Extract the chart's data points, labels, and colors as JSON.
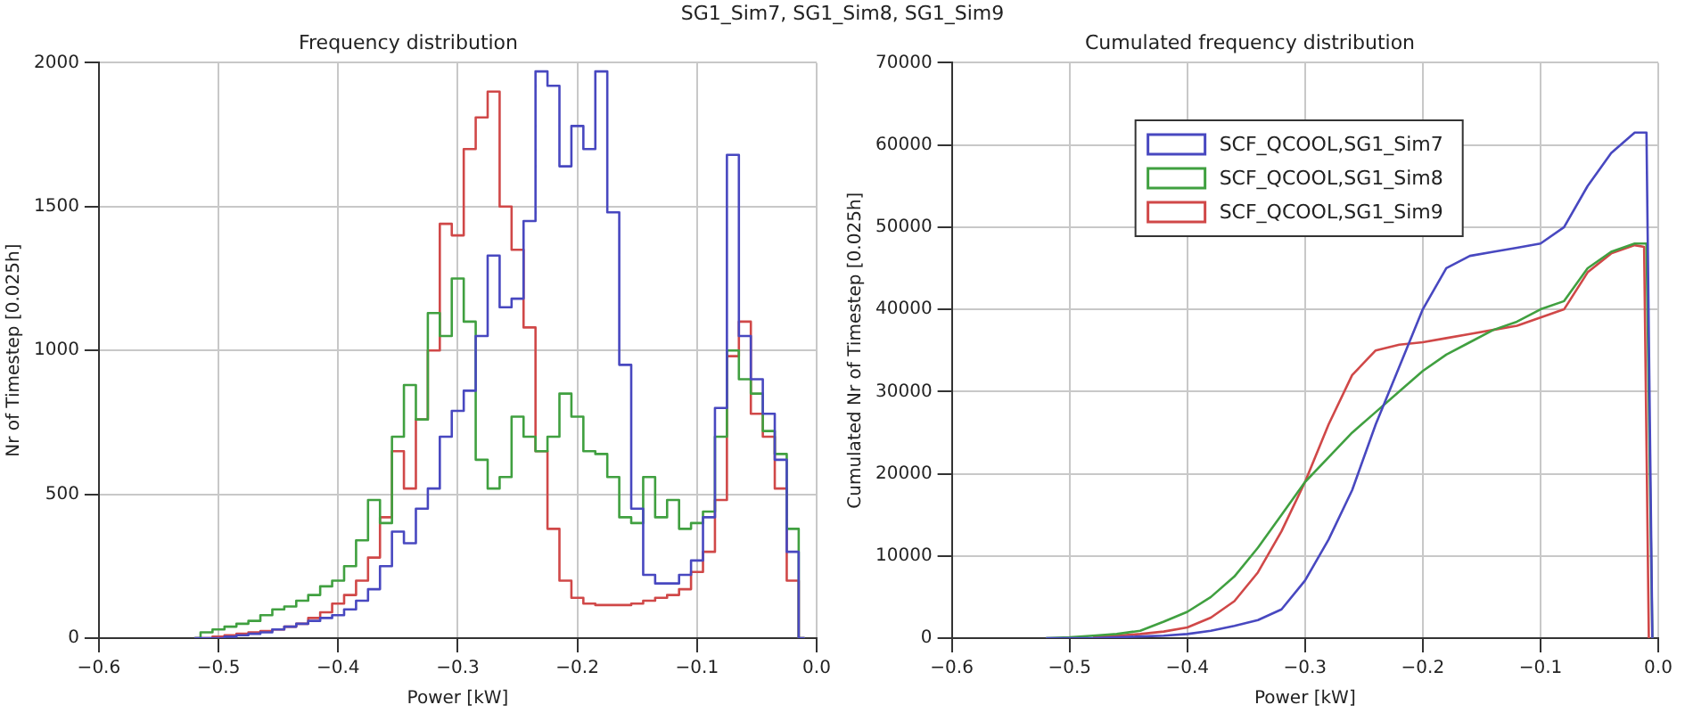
{
  "chart_data": [
    {
      "type": "step",
      "title": "Frequency distribution",
      "xlabel": "Power [kW]",
      "ylabel": "Nr of Timestep [0.025h]",
      "annotations": [
        "SG1_Sim7, SG1_Sim8, SG1_Sim9"
      ],
      "x": [
        -0.52,
        -0.51,
        -0.5,
        -0.49,
        -0.48,
        -0.47,
        -0.46,
        -0.45,
        -0.44,
        -0.43,
        -0.42,
        -0.41,
        -0.4,
        -0.39,
        -0.38,
        -0.37,
        -0.36,
        -0.35,
        -0.34,
        -0.33,
        -0.32,
        -0.31,
        -0.3,
        -0.29,
        -0.28,
        -0.27,
        -0.26,
        -0.25,
        -0.24,
        -0.23,
        -0.22,
        -0.21,
        -0.2,
        -0.19,
        -0.18,
        -0.17,
        -0.16,
        -0.15,
        -0.14,
        -0.13,
        -0.12,
        -0.11,
        -0.1,
        -0.09,
        -0.08,
        -0.07,
        -0.06,
        -0.05,
        -0.04,
        -0.03,
        -0.02,
        -0.01
      ],
      "series": [
        {
          "color": "#4848c0",
          "values": [
            0,
            0,
            0,
            5,
            10,
            15,
            20,
            30,
            40,
            50,
            60,
            70,
            80,
            100,
            130,
            170,
            250,
            370,
            330,
            450,
            520,
            700,
            790,
            860,
            1050,
            1330,
            1150,
            1180,
            1450,
            1970,
            1920,
            1640,
            1780,
            1700,
            1970,
            1480,
            950,
            450,
            220,
            190,
            190,
            220,
            270,
            420,
            800,
            1680,
            1050,
            900,
            780,
            620,
            300,
            0
          ]
        },
        {
          "color": "#40a040",
          "values": [
            0,
            20,
            30,
            40,
            50,
            60,
            80,
            100,
            110,
            130,
            150,
            180,
            200,
            250,
            340,
            480,
            400,
            700,
            880,
            760,
            1130,
            1050,
            1250,
            1100,
            620,
            520,
            560,
            770,
            700,
            650,
            700,
            850,
            770,
            650,
            640,
            560,
            420,
            400,
            560,
            420,
            480,
            380,
            400,
            440,
            700,
            1000,
            900,
            850,
            720,
            640,
            380,
            0
          ]
        },
        {
          "color": "#d04848",
          "values": [
            0,
            0,
            5,
            10,
            15,
            20,
            25,
            30,
            40,
            50,
            70,
            90,
            120,
            150,
            200,
            280,
            420,
            650,
            520,
            760,
            1000,
            1440,
            1400,
            1700,
            1810,
            1900,
            1500,
            1350,
            1080,
            650,
            380,
            200,
            140,
            120,
            115,
            115,
            115,
            120,
            130,
            140,
            150,
            170,
            230,
            300,
            480,
            980,
            1100,
            780,
            700,
            520,
            200,
            0
          ]
        }
      ],
      "xlim": [
        -0.6,
        0.0
      ],
      "xticks": [
        {
          "value": -0.6,
          "label": "−0.6"
        },
        {
          "value": -0.5,
          "label": "−0.5"
        },
        {
          "value": -0.4,
          "label": "−0.4"
        },
        {
          "value": -0.3,
          "label": "−0.3"
        },
        {
          "value": -0.2,
          "label": "−0.2"
        },
        {
          "value": -0.1,
          "label": "−0.1"
        },
        {
          "value": 0.0,
          "label": "0.0"
        }
      ],
      "ylim": [
        0,
        2000
      ],
      "yticks": [
        0,
        500,
        1000,
        1500,
        2000
      ],
      "grid": true,
      "marker": "none"
    },
    {
      "type": "line",
      "title": "Cumulated frequency distribution",
      "xlabel": "Power [kW]",
      "ylabel": "Cumulated Nr of Timestep [0.025h]",
      "x": [
        -0.52,
        -0.5,
        -0.48,
        -0.46,
        -0.44,
        -0.42,
        -0.4,
        -0.38,
        -0.36,
        -0.34,
        -0.32,
        -0.3,
        -0.28,
        -0.26,
        -0.24,
        -0.22,
        -0.2,
        -0.18,
        -0.16,
        -0.14,
        -0.12,
        -0.1,
        -0.08,
        -0.06,
        -0.04,
        -0.02,
        -0.01,
        -0.005
      ],
      "series": [
        {
          "name": "SCF_QCOOL,SG1_Sim7",
          "color": "#4848c0",
          "values": [
            0,
            0,
            0,
            100,
            200,
            300,
            500,
            900,
            1500,
            2200,
            3500,
            7000,
            12000,
            18000,
            26000,
            33000,
            40000,
            45000,
            46500,
            47000,
            47500,
            48000,
            50000,
            55000,
            59000,
            61500,
            61500,
            0
          ]
        },
        {
          "name": "SCF_QCOOL,SG1_Sim8",
          "color": "#40a040",
          "values": [
            0,
            100,
            300,
            500,
            900,
            2000,
            3200,
            5000,
            7500,
            11000,
            15000,
            19000,
            22000,
            25000,
            27500,
            30000,
            32500,
            34500,
            36000,
            37500,
            38500,
            40000,
            41000,
            45000,
            47000,
            48000,
            48000,
            0
          ]
        },
        {
          "name": "SCF_QCOOL,SG1_Sim9",
          "color": "#d04848",
          "x": [
            -0.48,
            -0.46,
            -0.44,
            -0.42,
            -0.4,
            -0.38,
            -0.36,
            -0.34,
            -0.32,
            -0.3,
            -0.28,
            -0.26,
            -0.24,
            -0.22,
            -0.2,
            -0.18,
            -0.16,
            -0.14,
            -0.12,
            -0.1,
            -0.08,
            -0.06,
            -0.04,
            -0.02,
            -0.012,
            -0.008
          ],
          "values": [
            100,
            300,
            500,
            800,
            1300,
            2500,
            4500,
            8000,
            13000,
            19000,
            26000,
            32000,
            35000,
            35700,
            36000,
            36500,
            37000,
            37500,
            38000,
            39000,
            40000,
            44500,
            46800,
            47800,
            47600,
            0
          ]
        }
      ],
      "xlim": [
        -0.6,
        0.0
      ],
      "xticks": [
        {
          "value": -0.6,
          "label": "−0.6"
        },
        {
          "value": -0.5,
          "label": "−0.5"
        },
        {
          "value": -0.4,
          "label": "−0.4"
        },
        {
          "value": -0.3,
          "label": "−0.3"
        },
        {
          "value": -0.2,
          "label": "−0.2"
        },
        {
          "value": -0.1,
          "label": "−0.1"
        },
        {
          "value": 0.0,
          "label": "0.0"
        }
      ],
      "ylim": [
        0,
        70000
      ],
      "yticks": [
        0,
        10000,
        20000,
        30000,
        40000,
        50000,
        60000,
        70000
      ],
      "grid": true,
      "legend": "top left",
      "marker": "none"
    }
  ]
}
